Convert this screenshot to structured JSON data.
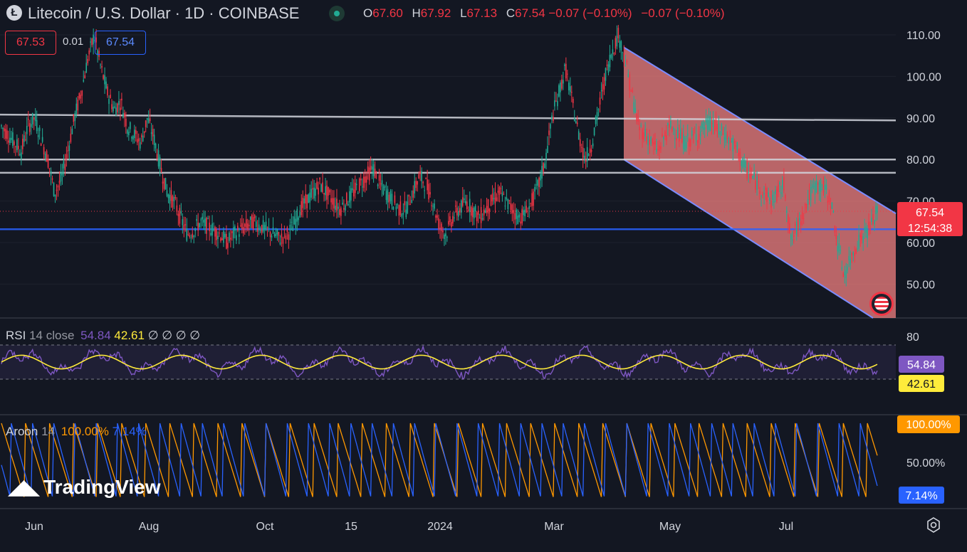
{
  "header": {
    "title": "Litecoin / U.S. Dollar · 1D · COINBASE",
    "logo_letter": "Ł",
    "ohlc": [
      {
        "k": "O",
        "v": "67.60"
      },
      {
        "k": "H",
        "v": "67.92"
      },
      {
        "k": "L",
        "v": "67.13"
      },
      {
        "k": "C",
        "v": "67.54 −0.07 (−0.10%)"
      }
    ],
    "ohlc_extra": "−0.07 (−0.10%)",
    "bid": "67.53",
    "spread": "0.01",
    "ask": "67.54"
  },
  "rsi_legend": {
    "name": "RSI",
    "params": "14 close",
    "value1": "54.84",
    "value2": "42.61",
    "empties": "∅ ∅ ∅ ∅"
  },
  "aroon_legend": {
    "name": "Aroon",
    "params": "14",
    "up": "100.00%",
    "down": "7.14%"
  },
  "watermark": "TradingView",
  "colors": {
    "up": "#22ab94",
    "down": "#f23645",
    "blue": "#2962ff",
    "purple": "#7e57c2",
    "yellow": "#ffeb3b",
    "orange": "#ff9800"
  },
  "chart_data": [
    {
      "type": "candlestick",
      "title": "Litecoin / U.S. Dollar · 1D · COINBASE",
      "x_ticks": [
        "Jun",
        "Aug",
        "Oct",
        "15",
        "2024",
        "Mar",
        "May",
        "Jul"
      ],
      "y_ticks": [
        50,
        60,
        70,
        80,
        90,
        100,
        110
      ],
      "ylim": [
        43,
        114
      ],
      "last_price": 67.54,
      "countdown": "12:54:38",
      "close_series": [
        88,
        86,
        84,
        82,
        88,
        90,
        85,
        80,
        72,
        75,
        82,
        90,
        96,
        104,
        110,
        102,
        96,
        92,
        94,
        88,
        86,
        84,
        90,
        85,
        78,
        72,
        70,
        66,
        62,
        63,
        65,
        64,
        63,
        62,
        60,
        62,
        63,
        64,
        65,
        64,
        63,
        62,
        61,
        62,
        64,
        68,
        70,
        72,
        74,
        72,
        70,
        68,
        70,
        72,
        74,
        76,
        78,
        74,
        72,
        70,
        68,
        68,
        72,
        76,
        74,
        70,
        64,
        62,
        66,
        68,
        70,
        68,
        66,
        68,
        70,
        72,
        70,
        68,
        66,
        67,
        70,
        74,
        80,
        90,
        96,
        102,
        94,
        86,
        80,
        84,
        92,
        100,
        106,
        110,
        104,
        96,
        88,
        86,
        84,
        82,
        86,
        88,
        86,
        84,
        85,
        86,
        88,
        89,
        87,
        86,
        84,
        82,
        78,
        76,
        74,
        72,
        70,
        72,
        74,
        60,
        64,
        68,
        72,
        74,
        73,
        70,
        60,
        52,
        56,
        60,
        62,
        64,
        67.5
      ],
      "horizontal_levels": [
        {
          "label": "resistance-upper",
          "start": 90.8,
          "end": 89.4,
          "color": "#d1d4dc"
        },
        {
          "label": "resistance-mid",
          "value": 80.0,
          "color": "#d1d4dc"
        },
        {
          "label": "resistance-lower",
          "value": 76.8,
          "color": "#d1d4dc"
        },
        {
          "label": "support",
          "value": 63.2,
          "color": "#2962ff"
        }
      ],
      "channel": {
        "upper_start": 107,
        "upper_end": 67,
        "lower_start": 80,
        "lower_end": 43
      }
    },
    {
      "type": "line",
      "title": "RSI 14 close",
      "y_ticks": [
        80
      ],
      "ylim": [
        20,
        85
      ],
      "bands": [
        70,
        30
      ],
      "series": [
        {
          "name": "RSI",
          "color": "#7e57c2",
          "last": 54.84
        },
        {
          "name": "RSI MA",
          "color": "#ffeb3b",
          "last": 42.61
        }
      ]
    },
    {
      "type": "line",
      "title": "Aroon 14",
      "y_ticks": [
        "50.00%"
      ],
      "ylim": [
        0,
        100
      ],
      "series": [
        {
          "name": "Aroon Up",
          "color": "#ff9800",
          "last": "100.00%"
        },
        {
          "name": "Aroon Down",
          "color": "#2962ff",
          "last": "7.14%"
        }
      ]
    }
  ]
}
